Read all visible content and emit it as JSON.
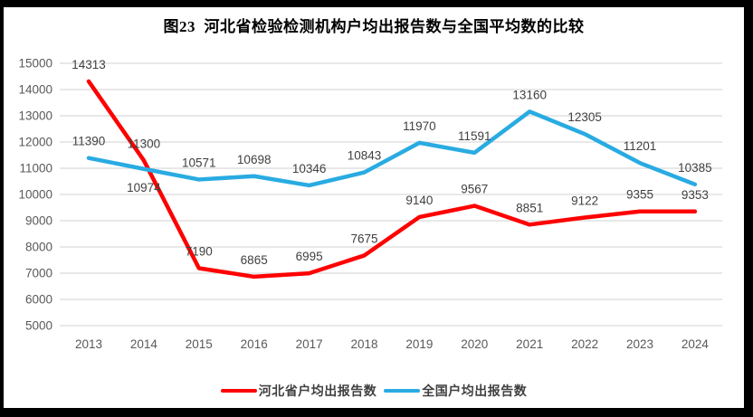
{
  "chart_data": {
    "type": "line",
    "title": "图23  河北省检验检测机构户均出报告数与全国平均数的比较",
    "categories": [
      "2013",
      "2014",
      "2015",
      "2016",
      "2017",
      "2018",
      "2019",
      "2020",
      "2021",
      "2022",
      "2023",
      "2024"
    ],
    "series": [
      {
        "name": "河北省户均出报告数",
        "color": "#FE0000",
        "values": [
          14313,
          11300,
          7190,
          6865,
          6995,
          7675,
          9140,
          9567,
          8851,
          9122,
          9355,
          9353
        ],
        "label_dy": {}
      },
      {
        "name": "全国户均出报告数",
        "color": "#29ABE2",
        "values": [
          11390,
          10974,
          10571,
          10698,
          10346,
          10843,
          11970,
          11591,
          13160,
          12305,
          11201,
          10385
        ],
        "label_dy": {
          "1": 25
        }
      }
    ],
    "ylim": [
      5000,
      15000
    ],
    "ytick_step": 1000,
    "yticks": [
      "5000",
      "6000",
      "7000",
      "8000",
      "9000",
      "10000",
      "11000",
      "12000",
      "13000",
      "14000",
      "15000"
    ],
    "grid": "horizontal",
    "legend_position": "bottom",
    "xlabel": "",
    "ylabel": ""
  },
  "style": {
    "frame_color": "#000000",
    "background_color": "#FFFFFF",
    "grid_color": "#D9D9D9",
    "axis_tick_color": "#595959",
    "data_label_color": "#404040",
    "line_width": 4.5
  }
}
